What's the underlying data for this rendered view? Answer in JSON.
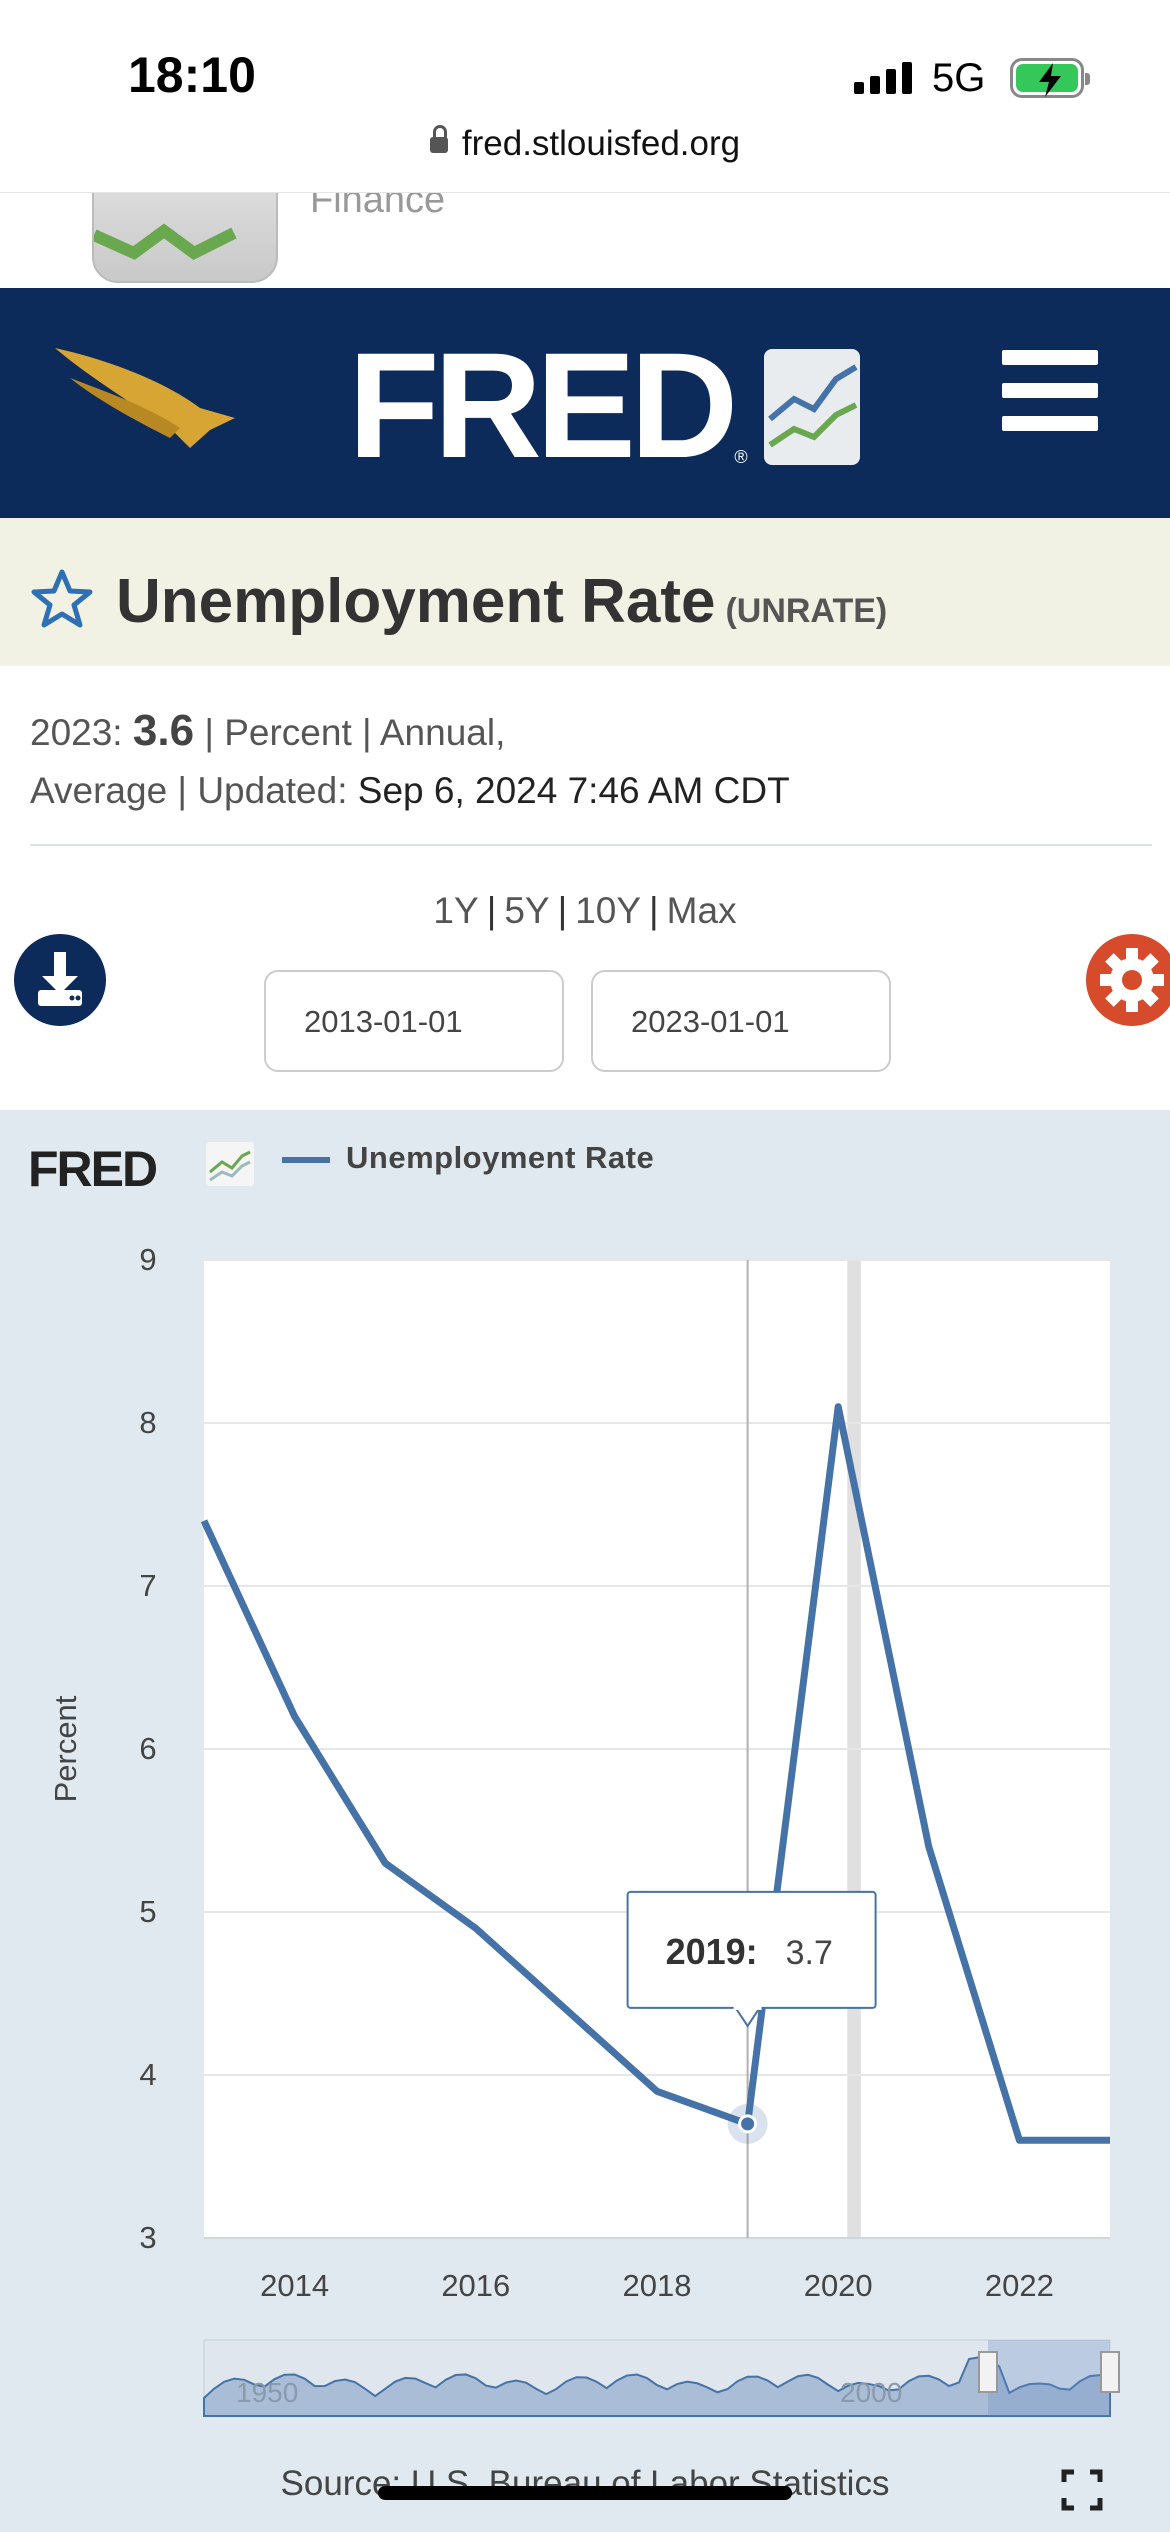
{
  "status": {
    "time": "18:10",
    "network": "5G",
    "url": "fred.stlouisfed.org"
  },
  "app_banner": {
    "text": "Finance"
  },
  "header": {
    "logo": "FRED",
    "logo_mark": "®"
  },
  "series": {
    "title": "Unemployment Rate",
    "code": "(UNRATE)"
  },
  "meta": {
    "year_label": "2023:",
    "value": "3.6",
    "units": "| Percent | Annual,",
    "line2_prefix": "Average | Updated:",
    "updated": "Sep 6, 2024 7:46 AM CDT"
  },
  "range_links": [
    "1Y",
    "5Y",
    "10Y",
    "Max"
  ],
  "date_range": {
    "start": "2013-01-01",
    "end": "2023-01-01"
  },
  "chart_header": {
    "logo": "FRED",
    "legend_label": "Unemployment Rate"
  },
  "source": "Source: U.S. Bureau of Labor Statistics",
  "icons": {
    "star": "star-icon",
    "download": "download-icon",
    "settings": "gear-icon",
    "menu": "hamburger-menu-icon",
    "fullscreen": "fullscreen-icon"
  },
  "colors": {
    "header_bg": "#0c2b5b",
    "title_band": "#f1f2e4",
    "series_line": "#4572a7",
    "chart_bg": "#e1e9f0",
    "settings": "#d54b2c"
  },
  "chart_data": {
    "type": "line",
    "xlabel": "",
    "ylabel": "Percent",
    "xlim": [
      2013,
      2023
    ],
    "ylim": [
      3,
      9
    ],
    "x_ticks": [
      2014,
      2016,
      2018,
      2020,
      2022
    ],
    "y_ticks": [
      3,
      4,
      5,
      6,
      7,
      8,
      9
    ],
    "grid": true,
    "series": [
      {
        "name": "Unemployment Rate",
        "x": [
          2013,
          2014,
          2015,
          2016,
          2017,
          2018,
          2019,
          2020,
          2021,
          2022,
          2023
        ],
        "values": [
          7.4,
          6.2,
          5.3,
          4.9,
          4.4,
          3.9,
          3.7,
          8.1,
          5.4,
          3.6,
          3.6
        ]
      }
    ],
    "tooltip": {
      "label": "2019:",
      "value": "3.7",
      "x": 2019
    },
    "recession_band": {
      "start": 2020.1,
      "end": 2020.25
    },
    "navigator": {
      "labels": [
        "1950",
        "2000"
      ]
    }
  }
}
